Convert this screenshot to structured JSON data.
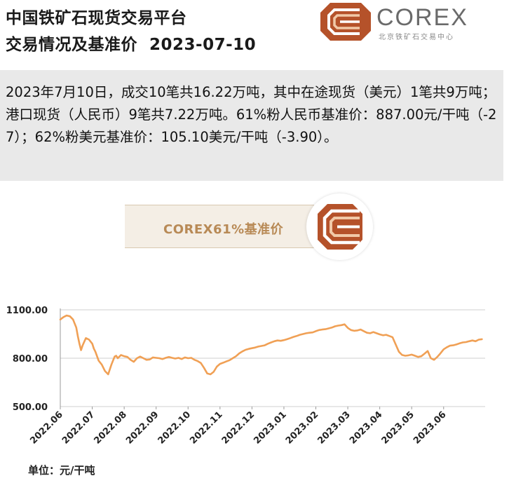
{
  "header": {
    "title_line1": "中国铁矿石现货交易平台",
    "title_line2": "交易情况及基准价  2023-07-10",
    "logo_text": "COREX",
    "logo_subtitle": "北京铁矿石交易中心",
    "brand_color": "#b5522a"
  },
  "summary": {
    "text": "2023年7月10日，成交10笔共16.22万吨，其中在途现货（美元）1笔共9万吨；港口现货（人民币）9笔共7.22万吨。61%粉人民币基准价：887.00元/干吨（-27）；62%粉美元基准价：105.10美元/干吨（-3.90）。"
  },
  "badge": {
    "text": "COREX61%基准价"
  },
  "unit_label": "单位：元/干吨",
  "chart_data": {
    "type": "line",
    "series_color": "#f0a055",
    "ylim": [
      500,
      1100
    ],
    "yticks": [
      "1100.00",
      "800.00",
      "500.00"
    ],
    "ytick_values": [
      1100,
      800,
      500
    ],
    "xticks": [
      "2022.06",
      "2022.07",
      "2022.08",
      "2022.09",
      "2022.10",
      "2022.11",
      "2022.12",
      "2023.01",
      "2023.02",
      "2023.03",
      "2023.04",
      "2023.05",
      "2023.06"
    ],
    "x_range": [
      0,
      13.3
    ],
    "grid": "horizontal",
    "x": [
      0,
      0.1,
      0.2,
      0.3,
      0.4,
      0.5,
      0.55,
      0.6,
      0.65,
      0.7,
      0.8,
      0.9,
      1.0,
      1.05,
      1.1,
      1.2,
      1.3,
      1.4,
      1.5,
      1.6,
      1.7,
      1.75,
      1.8,
      1.85,
      1.9,
      2.0,
      2.1,
      2.2,
      2.3,
      2.4,
      2.5,
      2.6,
      2.7,
      2.8,
      2.9,
      3.0,
      3.1,
      3.2,
      3.3,
      3.4,
      3.5,
      3.6,
      3.7,
      3.8,
      3.9,
      4.0,
      4.1,
      4.2,
      4.3,
      4.4,
      4.5,
      4.6,
      4.7,
      4.8,
      4.9,
      5.0,
      5.1,
      5.2,
      5.3,
      5.4,
      5.5,
      5.6,
      5.7,
      5.8,
      5.9,
      6.0,
      6.1,
      6.2,
      6.3,
      6.4,
      6.5,
      6.6,
      6.7,
      6.8,
      6.9,
      7.0,
      7.1,
      7.2,
      7.3,
      7.4,
      7.5,
      7.6,
      7.7,
      7.8,
      7.9,
      8.0,
      8.1,
      8.2,
      8.3,
      8.4,
      8.5,
      8.6,
      8.7,
      8.8,
      8.9,
      9.0,
      9.1,
      9.2,
      9.3,
      9.4,
      9.5,
      9.6,
      9.7,
      9.8,
      9.9,
      10.0,
      10.1,
      10.2,
      10.3,
      10.4,
      10.5,
      10.6,
      10.7,
      10.8,
      10.9,
      11.0,
      11.1,
      11.2,
      11.3,
      11.4,
      11.5,
      11.6,
      11.7,
      11.8,
      11.9,
      12.0,
      12.1,
      12.2,
      12.3,
      12.4,
      12.5,
      12.6,
      12.7,
      12.8,
      12.9,
      13.0,
      13.1,
      13.2
    ],
    "values": [
      1040,
      1055,
      1065,
      1060,
      1040,
      990,
      935,
      890,
      850,
      880,
      925,
      915,
      890,
      860,
      840,
      785,
      760,
      720,
      700,
      760,
      810,
      815,
      800,
      810,
      820,
      812,
      808,
      790,
      778,
      800,
      810,
      800,
      790,
      792,
      805,
      802,
      800,
      795,
      802,
      808,
      802,
      798,
      802,
      795,
      805,
      800,
      802,
      790,
      782,
      770,
      740,
      705,
      700,
      715,
      748,
      765,
      772,
      780,
      788,
      800,
      812,
      830,
      842,
      852,
      858,
      862,
      866,
      872,
      876,
      880,
      890,
      898,
      905,
      910,
      908,
      912,
      918,
      925,
      932,
      938,
      945,
      950,
      955,
      958,
      960,
      968,
      975,
      978,
      980,
      985,
      990,
      998,
      1002,
      1005,
      1010,
      988,
      975,
      970,
      972,
      978,
      968,
      958,
      955,
      962,
      955,
      948,
      942,
      945,
      938,
      930,
      885,
      840,
      820,
      815,
      818,
      822,
      815,
      808,
      812,
      828,
      845,
      800,
      790,
      808,
      830,
      855,
      868,
      878,
      880,
      885,
      892,
      898,
      900,
      905,
      910,
      905,
      915,
      918
    ]
  }
}
